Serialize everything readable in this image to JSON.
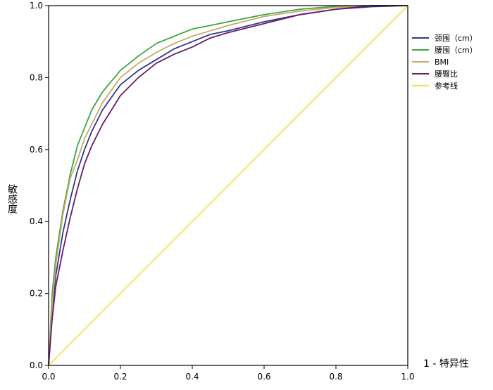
{
  "chart_data": {
    "type": "line",
    "title": "",
    "xlabel": "1 - 特异性",
    "ylabel": "敏感度",
    "xlim": [
      0,
      1
    ],
    "ylim": [
      0,
      1
    ],
    "xticks": [
      "0.0",
      "0.2",
      "0.4",
      "0.6",
      "0.8",
      "1.0"
    ],
    "yticks": [
      "0.0",
      "0.2",
      "0.4",
      "0.6",
      "0.8",
      "1.0"
    ],
    "grid": false,
    "legend_position": "right",
    "series": [
      {
        "name": "颈围（cm）",
        "color": "#2b3a8f",
        "x": [
          0,
          0.01,
          0.02,
          0.04,
          0.06,
          0.08,
          0.1,
          0.12,
          0.15,
          0.2,
          0.25,
          0.3,
          0.35,
          0.4,
          0.45,
          0.5,
          0.6,
          0.7,
          0.8,
          0.9,
          1.0
        ],
        "y": [
          0,
          0.16,
          0.25,
          0.37,
          0.46,
          0.54,
          0.6,
          0.65,
          0.71,
          0.78,
          0.82,
          0.85,
          0.88,
          0.9,
          0.92,
          0.93,
          0.955,
          0.975,
          0.99,
          0.997,
          1.0
        ]
      },
      {
        "name": "腰围（cm）",
        "color": "#3ea63e",
        "x": [
          0,
          0.01,
          0.02,
          0.04,
          0.06,
          0.08,
          0.1,
          0.12,
          0.15,
          0.2,
          0.25,
          0.3,
          0.35,
          0.4,
          0.45,
          0.5,
          0.6,
          0.7,
          0.8,
          0.9,
          1.0
        ],
        "y": [
          0,
          0.2,
          0.3,
          0.43,
          0.53,
          0.61,
          0.66,
          0.71,
          0.76,
          0.82,
          0.86,
          0.895,
          0.915,
          0.935,
          0.945,
          0.955,
          0.975,
          0.99,
          0.998,
          1.0,
          1.0
        ]
      },
      {
        "name": "BMI",
        "color": "#c8a96a",
        "x": [
          0,
          0.01,
          0.02,
          0.04,
          0.06,
          0.08,
          0.1,
          0.12,
          0.15,
          0.2,
          0.25,
          0.3,
          0.35,
          0.4,
          0.45,
          0.5,
          0.6,
          0.7,
          0.8,
          0.9,
          1.0
        ],
        "y": [
          0,
          0.17,
          0.28,
          0.42,
          0.52,
          0.57,
          0.63,
          0.67,
          0.73,
          0.8,
          0.84,
          0.87,
          0.895,
          0.915,
          0.93,
          0.945,
          0.97,
          0.985,
          0.995,
          1.0,
          1.0
        ]
      },
      {
        "name": "腰臀比",
        "color": "#6b1a6b",
        "x": [
          0,
          0.01,
          0.02,
          0.04,
          0.06,
          0.08,
          0.1,
          0.12,
          0.15,
          0.2,
          0.25,
          0.3,
          0.35,
          0.4,
          0.45,
          0.5,
          0.6,
          0.7,
          0.8,
          0.9,
          1.0
        ],
        "y": [
          0,
          0.13,
          0.22,
          0.32,
          0.41,
          0.49,
          0.56,
          0.61,
          0.67,
          0.75,
          0.8,
          0.84,
          0.865,
          0.885,
          0.91,
          0.925,
          0.95,
          0.975,
          0.99,
          1.0,
          1.0
        ]
      },
      {
        "name": "参考线",
        "color": "#f2e15a",
        "x": [
          0,
          1
        ],
        "y": [
          0,
          1
        ]
      }
    ]
  }
}
